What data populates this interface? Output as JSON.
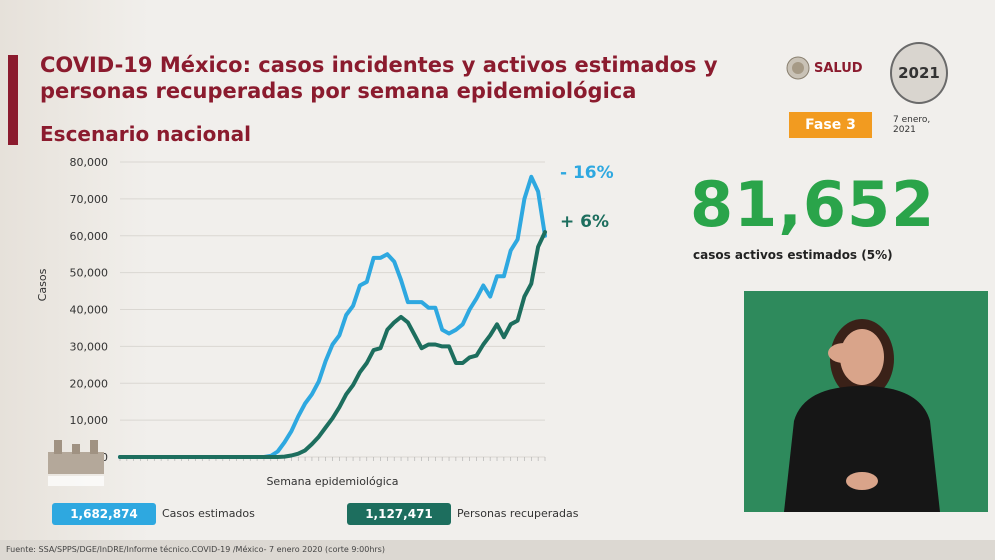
{
  "header": {
    "title_line1": "COVID-19 México: casos incidentes y activos estimados y",
    "title_line2": "personas recuperadas por semana epidemiológica",
    "subtitle": "Escenario nacional",
    "salud_label": "SALUD",
    "logo_2021": "2021",
    "phase_badge": "Fase 3",
    "date_line1": "7 enero,",
    "date_line2": "2021"
  },
  "highlight": {
    "value": "81,652",
    "caption": "casos activos estimados (5%)"
  },
  "legend": {
    "estimated_total": "1,682,874",
    "estimated_label": "Casos estimados",
    "recovered_total": "1,127,471",
    "recovered_label": "Personas recuperadas"
  },
  "footer": {
    "source": "Fuente: SSA/SPPS/DGE/InDRE/Informe técnico.COVID-19 /México- 7 enero 2020 (corte 9:00hrs)"
  },
  "colors": {
    "estimated": "#2ea8e0",
    "recovered": "#1d6e5e",
    "title": "#8b1b2e",
    "highlight": "#2aa44a",
    "phase": "#f29b20"
  },
  "chart_data": {
    "type": "line",
    "xlabel": "Semana epidemiológica",
    "ylabel": "Casos",
    "ylim": [
      0,
      80000
    ],
    "yticks": [
      0,
      10000,
      20000,
      30000,
      40000,
      50000,
      60000,
      70000,
      80000
    ],
    "ytick_labels": [
      "0",
      "10,000",
      "20,000",
      "30,000",
      "40,000",
      "50,000",
      "60,000",
      "70,000",
      "80,000"
    ],
    "grid": "horizontal",
    "series": [
      {
        "key": "estimated",
        "annotation": "- 16%",
        "values": [
          0,
          0,
          0,
          0,
          0,
          0,
          0,
          0,
          0,
          0,
          0,
          0,
          0,
          0,
          0,
          0,
          0,
          0,
          0,
          0,
          0,
          0,
          300,
          1500,
          4000,
          7000,
          11000,
          14500,
          17000,
          20500,
          26000,
          30500,
          33000,
          38500,
          41000,
          46500,
          47500,
          54000,
          54000,
          55000,
          53000,
          48000,
          42000,
          42000,
          42000,
          40500,
          40500,
          34500,
          33500,
          34500,
          36000,
          40000,
          43000,
          46500,
          43500,
          49000,
          49000,
          56000,
          59000,
          70000,
          76000,
          72000,
          60000
        ]
      },
      {
        "key": "recovered",
        "annotation": "+ 6%",
        "values": [
          0,
          0,
          0,
          0,
          0,
          0,
          0,
          0,
          0,
          0,
          0,
          0,
          0,
          0,
          0,
          0,
          0,
          0,
          0,
          0,
          0,
          0,
          0,
          0,
          100,
          400,
          900,
          1800,
          3500,
          5500,
          8000,
          10500,
          13500,
          17000,
          19500,
          23000,
          25500,
          29000,
          29500,
          34500,
          36500,
          38000,
          36500,
          33000,
          29500,
          30500,
          30500,
          30000,
          30000,
          25500,
          25500,
          27000,
          27500,
          30500,
          33000,
          36000,
          32500,
          36000,
          37000,
          43500,
          47000,
          57000,
          61000
        ]
      }
    ]
  }
}
